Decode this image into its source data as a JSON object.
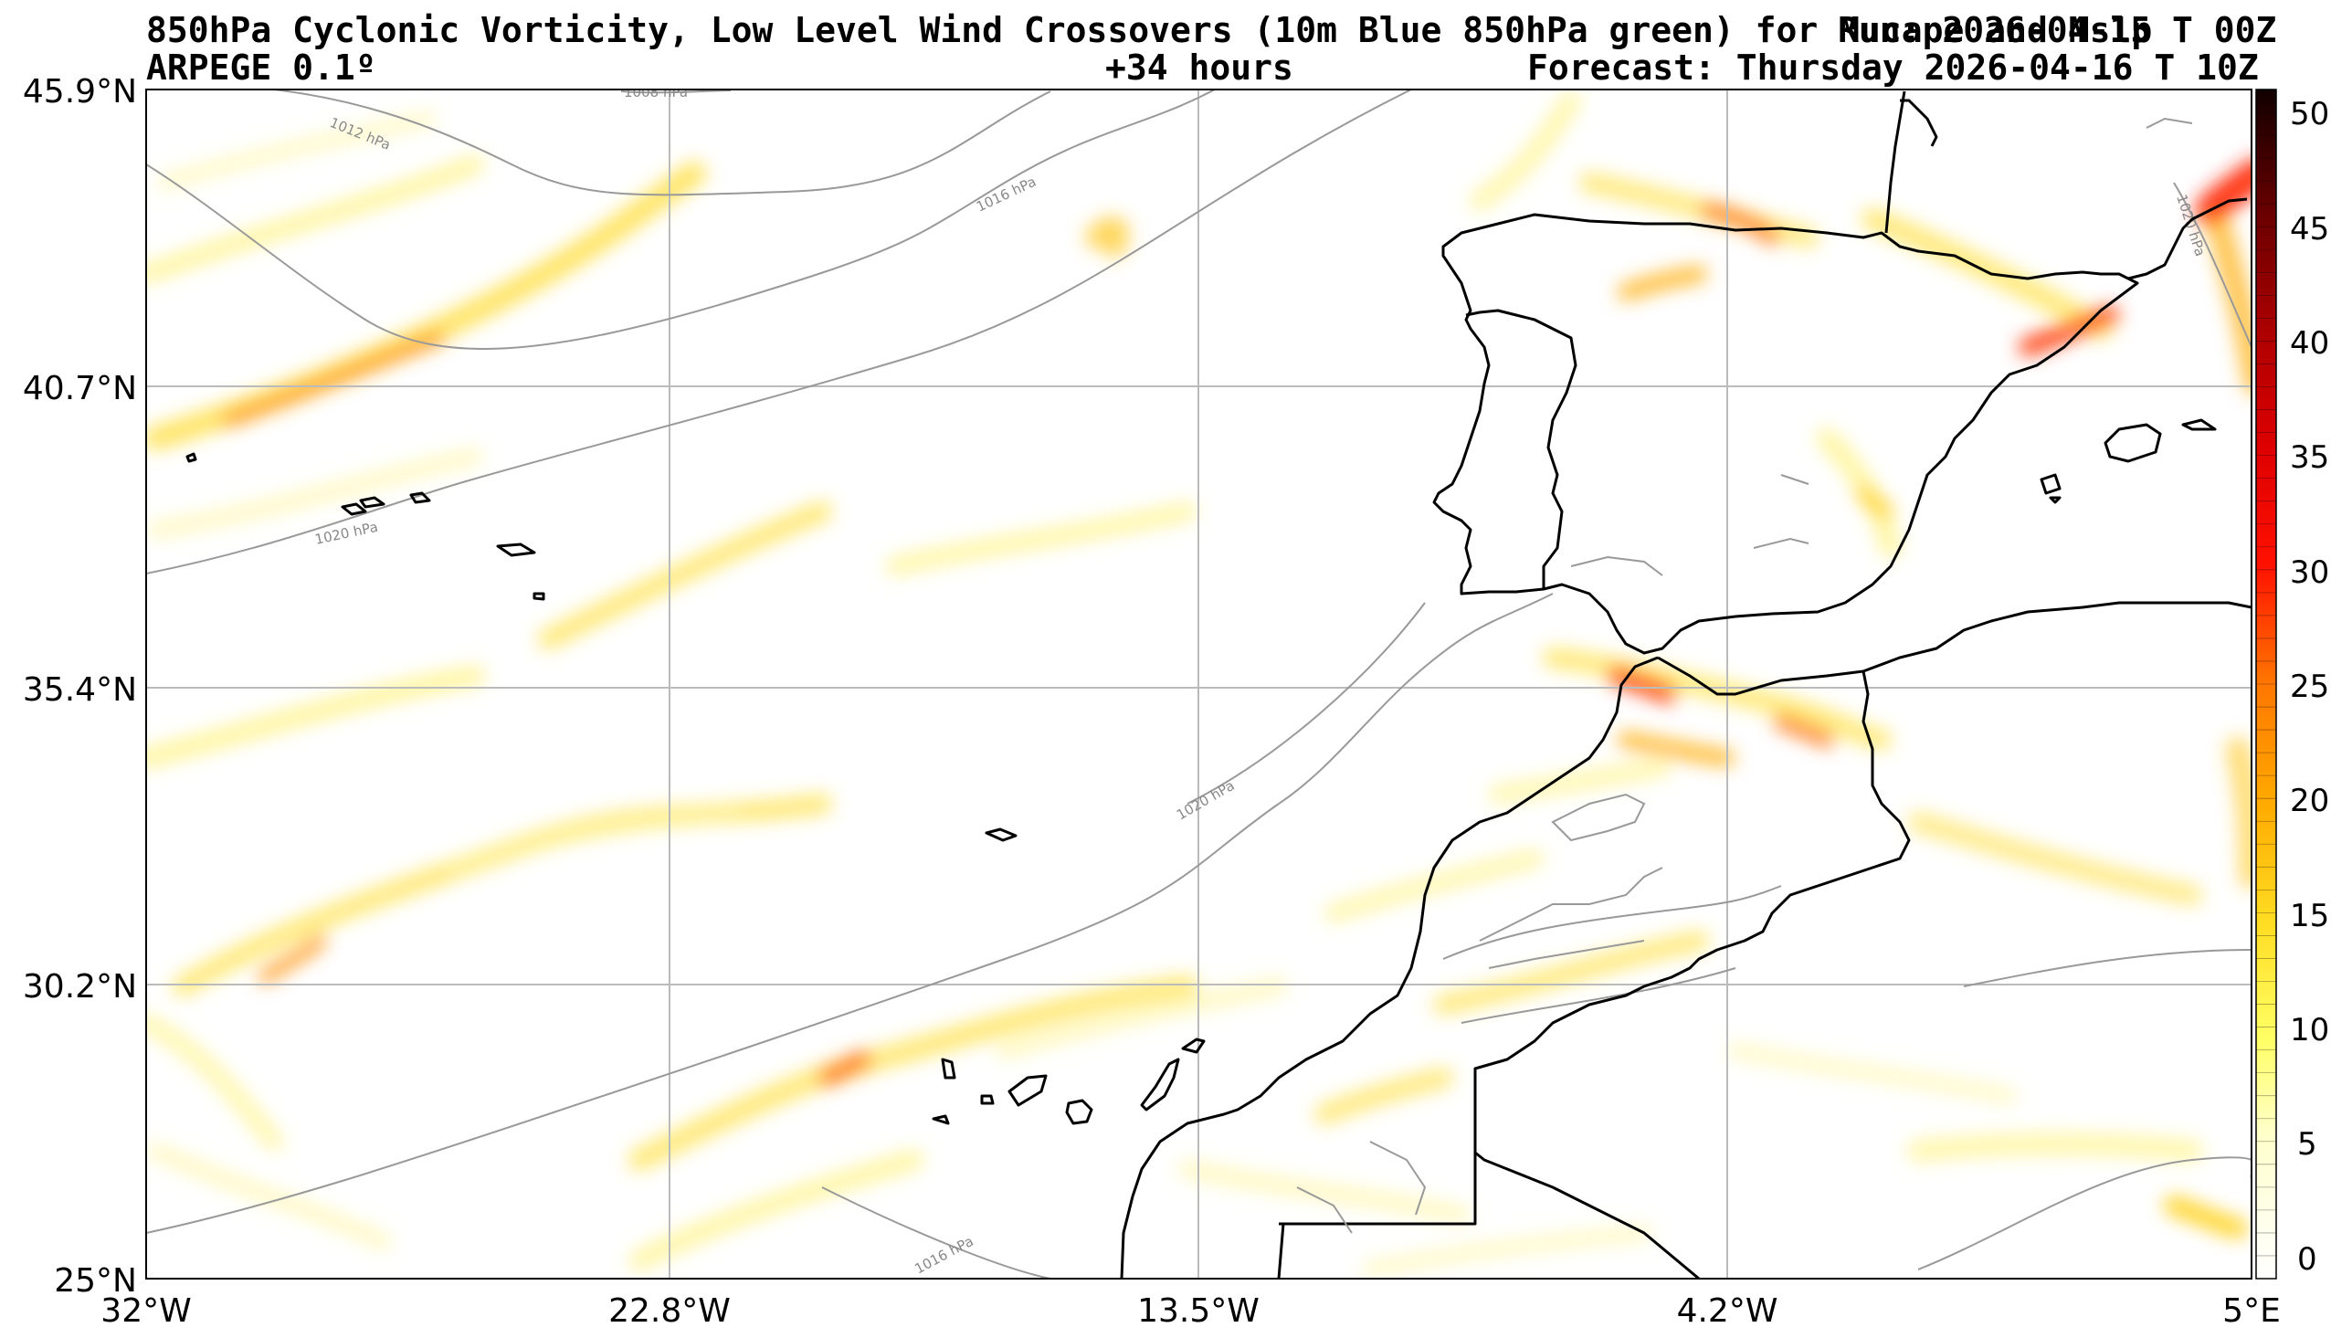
{
  "header": {
    "title_left": "850hPa Cyclonic Vorticity, Low Level Wind Crossovers (10m Blue 850hPa green) for Mucape and Mslp",
    "title_right": "Run: 2026-04-15 T 00Z",
    "model": "ARPEGE 0.1º",
    "lead_time": "+34 hours",
    "forecast": "Forecast: Thursday 2026-04-16 T 10Z"
  },
  "axes": {
    "lat_labels": [
      "45.9°N",
      "40.7°N",
      "35.4°N",
      "30.2°N",
      "25°N"
    ],
    "lon_labels": [
      "32°W",
      "22.8°W",
      "13.5°W",
      "4.2°W",
      "5°E"
    ]
  },
  "isobars": {
    "labels": [
      "1008 hPa",
      "1012 hPa",
      "1016 hPa",
      "1020 hPa",
      "1020 hPa",
      "1016 hPa",
      "1020 hPa"
    ]
  },
  "colorbar": {
    "ticks": [
      "50",
      "45",
      "40",
      "35",
      "30",
      "25",
      "20",
      "15",
      "10",
      "5",
      "0"
    ],
    "colors": [
      "#ffffff",
      "#ffff99",
      "#ffee44",
      "#ffcc00",
      "#ff9900",
      "#ff5500",
      "#ff0000",
      "#cc0000",
      "#880000",
      "#330000"
    ]
  },
  "colors": {
    "coast": "#000000",
    "isobar": "#999999",
    "grid": "#bbbbbb"
  }
}
